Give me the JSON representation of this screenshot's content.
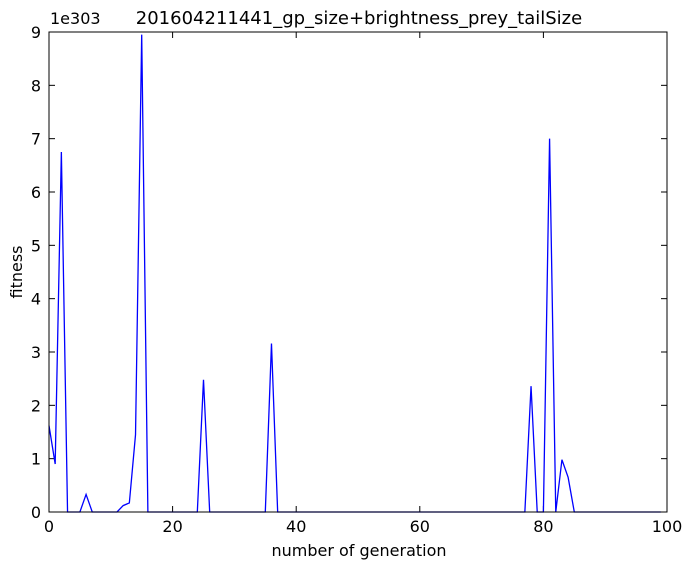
{
  "chart_data": {
    "type": "line",
    "title": "201604211441_gp_size+brightness_prey_tailSize",
    "xlabel": "number of generation",
    "ylabel": "fitness",
    "y_scale_offset": "1e303",
    "xlim": [
      0,
      100
    ],
    "ylim": [
      0,
      9
    ],
    "x_ticks": [
      0,
      20,
      40,
      60,
      80,
      100
    ],
    "y_ticks": [
      0,
      1,
      2,
      3,
      4,
      5,
      6,
      7,
      8,
      9
    ],
    "x_tick_labels": [
      "0",
      "20",
      "40",
      "60",
      "80",
      "100"
    ],
    "y_tick_labels": [
      "0",
      "1",
      "2",
      "3",
      "4",
      "5",
      "6",
      "7",
      "8",
      "9"
    ],
    "grid": false,
    "line_color": "#0000ff",
    "series": [
      {
        "x": [
          0,
          1,
          2,
          3,
          4,
          5,
          6,
          7,
          8,
          9,
          10,
          11,
          12,
          13,
          14,
          15,
          16,
          17,
          18,
          19,
          20,
          21,
          22,
          23,
          24,
          25,
          26,
          27,
          28,
          29,
          30,
          31,
          32,
          33,
          34,
          35,
          36,
          37,
          38,
          39,
          40,
          41,
          42,
          43,
          44,
          45,
          46,
          47,
          48,
          49,
          50,
          51,
          52,
          53,
          54,
          55,
          56,
          57,
          58,
          59,
          60,
          61,
          62,
          63,
          64,
          65,
          66,
          67,
          68,
          69,
          70,
          71,
          72,
          73,
          74,
          75,
          76,
          77,
          78,
          79,
          80,
          81,
          82,
          83,
          84,
          85,
          86,
          87,
          88,
          89,
          90,
          91,
          92,
          93,
          94,
          95,
          96,
          97,
          98,
          99
        ],
        "values": [
          1.62,
          0.9,
          6.75,
          0,
          0,
          0,
          0.33,
          0,
          0,
          0,
          0,
          0,
          0.12,
          0.17,
          1.45,
          8.95,
          0,
          0,
          0,
          0,
          0,
          0,
          0,
          0,
          0,
          2.48,
          0,
          0,
          0,
          0,
          0,
          0,
          0,
          0,
          0,
          0,
          3.16,
          0,
          0,
          0,
          0,
          0,
          0,
          0,
          0,
          0,
          0,
          0,
          0,
          0,
          0,
          0,
          0,
          0,
          0,
          0,
          0,
          0,
          0,
          0,
          0,
          0,
          0,
          0,
          0,
          0,
          0,
          0,
          0,
          0,
          0,
          0,
          0,
          0,
          0,
          0,
          0,
          0,
          2.36,
          0,
          0,
          7.0,
          0,
          0.98,
          0.65,
          0,
          0,
          0,
          0,
          0,
          0,
          0,
          0,
          0,
          0,
          0,
          0,
          0,
          0,
          0
        ]
      }
    ]
  }
}
